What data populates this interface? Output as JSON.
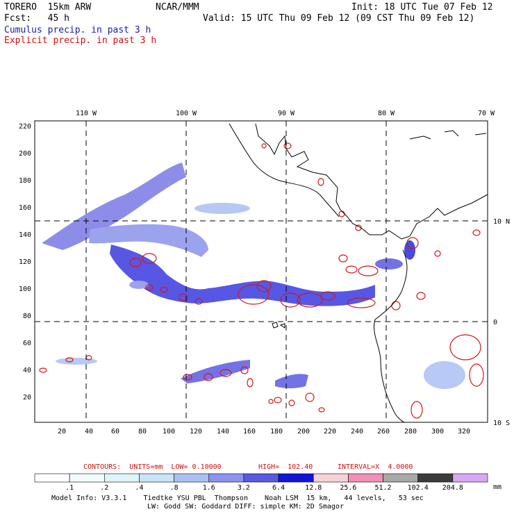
{
  "header": {
    "model": "TORERO  15km ARW",
    "org": "NCAR/MMM",
    "init": "Init: 18 UTC Tue 07 Feb 12",
    "fcst": "Fcst:   45 h",
    "valid": "Valid: 15 UTC Thu 09 Feb 12 (09 CST Thu 09 Feb 12)",
    "legend_cumulus": "Cumulus precip. in past 3 h",
    "legend_explicit": "Explicit precip. in past 3 h"
  },
  "map": {
    "lon_labels": [
      "110 W",
      "100 W",
      "90 W",
      "80 W",
      "70 W"
    ],
    "lat_labels": [
      "10 N",
      "0",
      "10 S"
    ],
    "y_ticks": [
      "220",
      "200",
      "180",
      "160",
      "140",
      "120",
      "100",
      "80",
      "60",
      "40",
      "20"
    ],
    "x_ticks": [
      "20",
      "40",
      "60",
      "80",
      "100",
      "120",
      "140",
      "160",
      "180",
      "200",
      "220",
      "240",
      "260",
      "280",
      "300",
      "320"
    ],
    "colors": {
      "coast": "#000000",
      "cumulus": "#2a2ad8",
      "explicit": "#d01818"
    }
  },
  "contours_line": {
    "contours": "CONTOURS:  UNITS=mm  LOW= 0.10000",
    "high": "HIGH=  102.40",
    "interval": "INTERVAL=X  4.0000"
  },
  "colorbar": {
    "unit": "mm",
    "labels": [
      ".1",
      ".2",
      ".4",
      ".8",
      "1.6",
      "3.2",
      "6.4",
      "12.8",
      "25.6",
      "51.2",
      "102.4",
      "204.8"
    ],
    "colors": [
      "#ffffff",
      "#f2fbfe",
      "#e0f4fb",
      "#c8e4f8",
      "#aac0f2",
      "#8a94ec",
      "#5a5ae0",
      "#1414d8",
      "#f6d2d4",
      "#f090b8",
      "#a8a8a8",
      "#3c3c3c",
      "#d8a8f4"
    ]
  },
  "footer": {
    "line1": "Model Info: V3.3.1    Tiedtke YSU PBL  Thompson    Noah LSM  15 km,   44 levels,   53 sec",
    "line2": "LW: Godd SW: Goddard DIFF: simple KM: 2D Smagor"
  }
}
